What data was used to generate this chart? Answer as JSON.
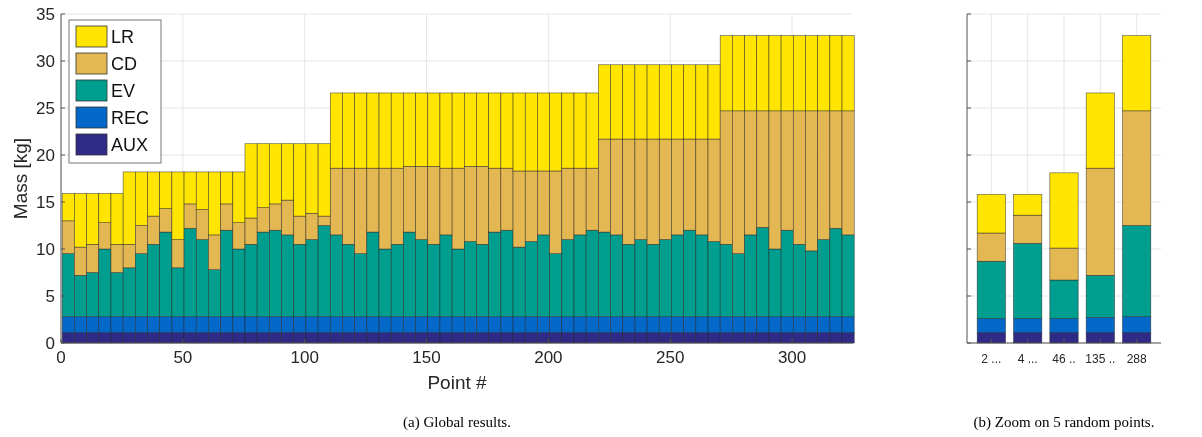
{
  "chart_data": [
    {
      "type": "bar",
      "stacked": true,
      "xlabel": "Point #",
      "ylabel": "Mass [kg]",
      "annotations": [
        "(a) Global results."
      ],
      "x": [
        3,
        8,
        13,
        18,
        23,
        28,
        33,
        38,
        43,
        48,
        53,
        58,
        63,
        68,
        73,
        78,
        83,
        88,
        93,
        98,
        103,
        108,
        113,
        118,
        123,
        128,
        133,
        138,
        143,
        148,
        153,
        158,
        163,
        168,
        173,
        178,
        183,
        188,
        193,
        198,
        203,
        208,
        213,
        218,
        223,
        228,
        233,
        238,
        243,
        248,
        253,
        258,
        263,
        268,
        273,
        278,
        283,
        288,
        293,
        298,
        303,
        308,
        313,
        318,
        323
      ],
      "xlim": [
        0,
        325
      ],
      "xticks": [
        0,
        50,
        100,
        150,
        200,
        250,
        300
      ],
      "ylim": [
        0,
        35
      ],
      "yticks": [
        0,
        5,
        10,
        15,
        20,
        25,
        30,
        35
      ],
      "grid": true,
      "legend": "top left",
      "series": [
        {
          "name": "AUX",
          "color": "#2e2a86",
          "values": [
            1.1,
            1.1,
            1.1,
            1.1,
            1.1,
            1.1,
            1.1,
            1.1,
            1.1,
            1.1,
            1.1,
            1.1,
            1.1,
            1.1,
            1.1,
            1.1,
            1.1,
            1.1,
            1.1,
            1.1,
            1.1,
            1.1,
            1.1,
            1.1,
            1.1,
            1.1,
            1.1,
            1.1,
            1.1,
            1.1,
            1.1,
            1.1,
            1.1,
            1.1,
            1.1,
            1.1,
            1.1,
            1.1,
            1.1,
            1.1,
            1.1,
            1.1,
            1.1,
            1.1,
            1.1,
            1.1,
            1.1,
            1.1,
            1.1,
            1.1,
            1.1,
            1.1,
            1.1,
            1.1,
            1.1,
            1.1,
            1.1,
            1.1,
            1.1,
            1.1,
            1.1,
            1.1,
            1.1,
            1.1,
            1.1
          ]
        },
        {
          "name": "REC",
          "color": "#0468c8",
          "values": [
            1.7,
            1.7,
            1.7,
            1.7,
            1.7,
            1.7,
            1.7,
            1.7,
            1.7,
            1.7,
            1.7,
            1.7,
            1.7,
            1.7,
            1.7,
            1.7,
            1.7,
            1.7,
            1.7,
            1.7,
            1.7,
            1.7,
            1.7,
            1.7,
            1.7,
            1.7,
            1.7,
            1.7,
            1.7,
            1.7,
            1.7,
            1.7,
            1.7,
            1.7,
            1.7,
            1.7,
            1.7,
            1.7,
            1.7,
            1.7,
            1.7,
            1.7,
            1.7,
            1.7,
            1.7,
            1.7,
            1.7,
            1.7,
            1.7,
            1.7,
            1.7,
            1.7,
            1.7,
            1.7,
            1.7,
            1.7,
            1.7,
            1.7,
            1.7,
            1.7,
            1.7,
            1.7,
            1.7,
            1.7,
            1.7
          ]
        },
        {
          "name": "EV",
          "color": "#009e8f",
          "values": [
            6.7,
            4.4,
            4.7,
            7.2,
            4.7,
            5.2,
            6.7,
            7.7,
            9.0,
            5.2,
            9.4,
            8.2,
            5.0,
            9.2,
            7.2,
            7.7,
            9.0,
            9.2,
            8.7,
            7.7,
            8.2,
            9.7,
            8.7,
            7.7,
            6.7,
            9.0,
            7.2,
            7.7,
            9.0,
            8.2,
            7.7,
            8.7,
            7.2,
            8.0,
            7.7,
            9.0,
            9.2,
            7.4,
            8.0,
            8.7,
            6.7,
            8.2,
            8.7,
            9.2,
            9.0,
            8.7,
            7.7,
            8.2,
            7.7,
            8.2,
            8.7,
            9.2,
            8.7,
            8.0,
            7.7,
            6.7,
            8.7,
            9.5,
            7.2,
            9.2,
            7.7,
            7.0,
            8.2,
            9.4,
            8.7
          ]
        },
        {
          "name": "CD",
          "color": "#e3b752",
          "values": [
            3.5,
            3.0,
            3.0,
            2.8,
            3.0,
            2.5,
            3.0,
            3.0,
            2.5,
            3.0,
            2.6,
            3.2,
            3.7,
            2.8,
            2.8,
            2.8,
            2.6,
            2.8,
            3.7,
            3.0,
            2.8,
            1.0,
            7.1,
            8.1,
            9.1,
            6.8,
            8.6,
            8.1,
            7.0,
            7.8,
            8.3,
            7.1,
            8.6,
            8.0,
            8.3,
            6.8,
            6.6,
            8.1,
            7.5,
            6.8,
            8.8,
            7.6,
            7.1,
            6.6,
            9.9,
            10.2,
            11.2,
            10.7,
            11.2,
            10.7,
            10.2,
            9.7,
            10.2,
            10.9,
            14.2,
            15.2,
            13.2,
            12.4,
            14.7,
            12.7,
            14.2,
            14.9,
            13.7,
            12.5,
            13.2
          ]
        },
        {
          "name": "LR",
          "color": "#ffe500",
          "values": [
            2.9,
            5.7,
            5.4,
            3.1,
            5.4,
            7.7,
            5.7,
            4.7,
            3.9,
            7.2,
            3.4,
            4.0,
            6.7,
            3.4,
            5.4,
            7.9,
            6.8,
            6.4,
            6.0,
            7.7,
            7.4,
            7.7,
            8.0,
            8.0,
            8.0,
            8.0,
            8.0,
            8.0,
            7.8,
            7.8,
            7.8,
            8.0,
            8.0,
            7.8,
            7.8,
            8.0,
            8.0,
            8.3,
            8.3,
            8.3,
            8.3,
            8.0,
            8.0,
            8.0,
            7.9,
            7.9,
            7.9,
            7.9,
            7.9,
            7.9,
            7.9,
            7.9,
            7.9,
            7.9,
            8.0,
            8.0,
            8.0,
            8.0,
            8.0,
            8.0,
            8.0,
            8.0,
            8.0,
            8.0,
            8.0
          ]
        }
      ]
    },
    {
      "type": "bar",
      "stacked": true,
      "annotations": [
        "(b) Zoom on 5 random points."
      ],
      "categories": [
        "2 ...",
        "4 ...",
        "46 ..",
        "135 ..",
        "288"
      ],
      "ylim": [
        0,
        35
      ],
      "yticks": [
        0,
        5,
        10,
        15,
        20,
        25,
        30,
        35
      ],
      "grid": true,
      "tick_labels": "x",
      "series": [
        {
          "color": "#2e2a86",
          "values": [
            1.1,
            1.1,
            1.1,
            1.1,
            1.1
          ]
        },
        {
          "color": "#0468c8",
          "values": [
            1.5,
            1.5,
            1.5,
            1.6,
            1.7
          ]
        },
        {
          "color": "#009e8f",
          "values": [
            6.1,
            8.0,
            4.1,
            4.5,
            9.7
          ]
        },
        {
          "color": "#e3b752",
          "values": [
            3.0,
            3.0,
            3.4,
            11.4,
            12.2
          ]
        },
        {
          "color": "#ffe500",
          "values": [
            4.1,
            2.2,
            8.0,
            8.0,
            8.0
          ]
        }
      ]
    }
  ]
}
